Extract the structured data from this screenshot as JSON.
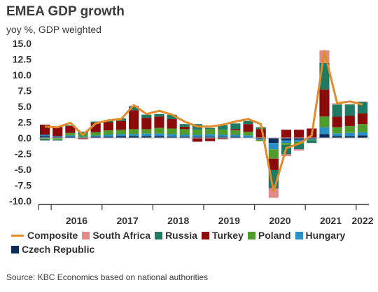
{
  "chart_data": {
    "type": "bar",
    "title": "EMEA GDP growth",
    "subtitle": "yoy %, GDP weighted",
    "ylim": [
      -10.0,
      15.0
    ],
    "yticks": [
      "15.0",
      "12.5",
      "10.0",
      "7.5",
      "5.0",
      "2.5",
      "0.0",
      "-2.5",
      "-5.0",
      "-7.5",
      "-10.0"
    ],
    "x_labels": [
      "2016",
      "2017",
      "2018",
      "2019",
      "2020",
      "2021",
      "2022"
    ],
    "quarters": [
      "2015Q4",
      "2016Q1",
      "2016Q2",
      "2016Q3",
      "2016Q4",
      "2017Q1",
      "2017Q2",
      "2017Q3",
      "2017Q4",
      "2018Q1",
      "2018Q2",
      "2018Q3",
      "2018Q4",
      "2019Q1",
      "2019Q2",
      "2019Q3",
      "2019Q4",
      "2020Q1",
      "2020Q2",
      "2020Q3",
      "2020Q4",
      "2021Q1",
      "2021Q2",
      "2021Q3",
      "2021Q4",
      "2022Q1"
    ],
    "series": [
      {
        "name": "Czech Republic",
        "color": "#0d2d5c",
        "values": [
          0.3,
          0.2,
          0.2,
          0.1,
          0.2,
          0.2,
          0.3,
          0.3,
          0.3,
          0.3,
          0.2,
          0.2,
          0.2,
          0.2,
          0.2,
          0.2,
          0.1,
          -0.2,
          -0.8,
          -0.4,
          -0.3,
          -0.2,
          0.6,
          0.3,
          0.3,
          0.4
        ]
      },
      {
        "name": "Hungary",
        "color": "#2a8fc6",
        "values": [
          0.2,
          0.1,
          0.2,
          0.1,
          0.2,
          0.3,
          0.3,
          0.3,
          0.4,
          0.4,
          0.4,
          0.3,
          0.3,
          0.4,
          0.3,
          0.3,
          0.3,
          -0.1,
          -1.0,
          -0.4,
          -0.3,
          -0.1,
          1.1,
          0.4,
          0.5,
          0.5
        ]
      },
      {
        "name": "Poland",
        "color": "#4f9b2c",
        "values": [
          -0.2,
          -0.3,
          0.4,
          0.4,
          0.5,
          0.7,
          0.7,
          0.8,
          0.7,
          0.9,
          0.9,
          0.9,
          0.8,
          0.8,
          0.8,
          0.7,
          0.6,
          -0.2,
          -1.5,
          -0.3,
          -0.4,
          -0.1,
          1.7,
          1.0,
          1.1,
          1.3
        ]
      },
      {
        "name": "Turkey",
        "color": "#8b0a0a",
        "values": [
          1.6,
          1.5,
          1.1,
          -0.2,
          1.5,
          1.3,
          1.4,
          3.0,
          1.8,
          1.8,
          1.5,
          0.4,
          -0.6,
          -0.5,
          -0.2,
          0.2,
          1.2,
          1.4,
          -1.8,
          1.3,
          1.3,
          1.5,
          4.3,
          1.7,
          1.6,
          1.7
        ]
      },
      {
        "name": "Russia",
        "color": "#1f7a64",
        "values": [
          -0.2,
          -0.1,
          0.1,
          0.4,
          0.2,
          0.3,
          0.4,
          0.6,
          0.5,
          0.4,
          0.7,
          0.4,
          0.9,
          0.2,
          0.7,
          0.9,
          0.5,
          0.3,
          -2.9,
          -1.5,
          -0.8,
          -0.4,
          4.2,
          1.9,
          1.8,
          1.8
        ]
      },
      {
        "name": "South Africa",
        "color": "#e08a8a",
        "values": [
          0.0,
          0.0,
          0.0,
          0.0,
          0.0,
          0.0,
          0.0,
          0.1,
          0.0,
          0.0,
          0.0,
          0.0,
          0.0,
          0.0,
          0.0,
          0.0,
          0.0,
          0.0,
          -1.5,
          -0.3,
          -0.2,
          0.0,
          2.0,
          0.2,
          0.1,
          0.1
        ]
      }
    ],
    "composite": {
      "name": "Composite",
      "color": "#e08b2c",
      "values": [
        1.8,
        1.7,
        2.4,
        0.5,
        2.3,
        2.8,
        3.0,
        5.2,
        3.8,
        4.3,
        3.7,
        2.6,
        1.8,
        1.8,
        2.1,
        2.6,
        3.0,
        2.2,
        -8.5,
        -1.6,
        -0.9,
        0.4,
        13.8,
        5.5,
        5.8,
        5.3
      ]
    },
    "legend_order": [
      "Composite",
      "South Africa",
      "Russia",
      "Turkey",
      "Poland",
      "Hungary",
      "Czech Republic"
    ],
    "grid": false,
    "legend_position": "bottom"
  },
  "source": "Source: KBC Economics based on national authorities"
}
